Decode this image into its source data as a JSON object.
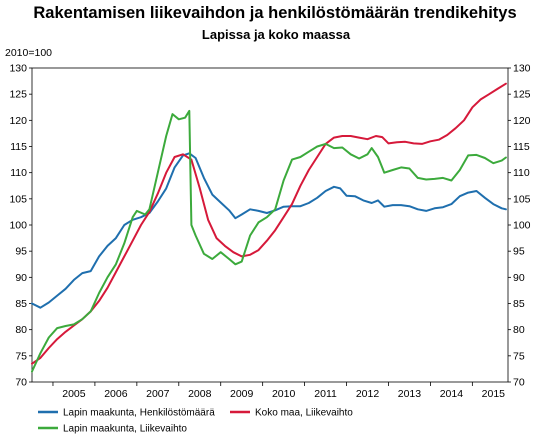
{
  "chart_data": {
    "type": "line",
    "title": "Rakentamisen liikevaihdon ja henkilöstömäärän trendikehitys",
    "subtitle": "Lapissa ja koko maassa",
    "y_unit_label": "2010=100",
    "ylim": [
      70,
      130
    ],
    "yticks": [
      "70",
      "75",
      "80",
      "85",
      "90",
      "95",
      "100",
      "105",
      "110",
      "115",
      "120",
      "125",
      "130"
    ],
    "xlim": [
      2004.5,
      2015.85
    ],
    "xticks": [
      "2005",
      "2006",
      "2007",
      "2008",
      "2009",
      "2010",
      "2011",
      "2012",
      "2013",
      "2014",
      "2015"
    ],
    "grid": false,
    "legend_position": "bottom",
    "series": [
      {
        "name": "Lapin maakunta, Henkilöstömäärä",
        "color": "#1f6fae",
        "points": [
          [
            2004.5,
            85.0
          ],
          [
            2004.7,
            84.2
          ],
          [
            2004.9,
            85.2
          ],
          [
            2005.1,
            86.5
          ],
          [
            2005.3,
            87.8
          ],
          [
            2005.5,
            89.5
          ],
          [
            2005.7,
            90.8
          ],
          [
            2005.9,
            91.2
          ],
          [
            2006.1,
            94.0
          ],
          [
            2006.3,
            96.0
          ],
          [
            2006.5,
            97.5
          ],
          [
            2006.7,
            100.0
          ],
          [
            2006.9,
            101.0
          ],
          [
            2007.1,
            101.5
          ],
          [
            2007.3,
            102.3
          ],
          [
            2007.5,
            104.5
          ],
          [
            2007.7,
            107.0
          ],
          [
            2007.9,
            111.0
          ],
          [
            2008.1,
            113.3
          ],
          [
            2008.25,
            113.7
          ],
          [
            2008.4,
            112.8
          ],
          [
            2008.6,
            109.0
          ],
          [
            2008.8,
            105.8
          ],
          [
            2009.0,
            104.3
          ],
          [
            2009.2,
            102.8
          ],
          [
            2009.35,
            101.3
          ],
          [
            2009.5,
            102.0
          ],
          [
            2009.7,
            103.0
          ],
          [
            2009.9,
            102.7
          ],
          [
            2010.1,
            102.3
          ],
          [
            2010.3,
            102.8
          ],
          [
            2010.5,
            103.5
          ],
          [
            2010.7,
            103.6
          ],
          [
            2010.9,
            103.6
          ],
          [
            2011.1,
            104.2
          ],
          [
            2011.3,
            105.2
          ],
          [
            2011.5,
            106.5
          ],
          [
            2011.7,
            107.3
          ],
          [
            2011.85,
            107.0
          ],
          [
            2012.0,
            105.6
          ],
          [
            2012.2,
            105.5
          ],
          [
            2012.4,
            104.7
          ],
          [
            2012.6,
            104.2
          ],
          [
            2012.75,
            104.7
          ],
          [
            2012.9,
            103.5
          ],
          [
            2013.1,
            103.8
          ],
          [
            2013.3,
            103.8
          ],
          [
            2013.5,
            103.6
          ],
          [
            2013.7,
            103.0
          ],
          [
            2013.9,
            102.7
          ],
          [
            2014.1,
            103.2
          ],
          [
            2014.3,
            103.4
          ],
          [
            2014.5,
            104.0
          ],
          [
            2014.7,
            105.5
          ],
          [
            2014.9,
            106.2
          ],
          [
            2015.1,
            106.5
          ],
          [
            2015.3,
            105.2
          ],
          [
            2015.5,
            104.0
          ],
          [
            2015.7,
            103.2
          ],
          [
            2015.8,
            103.0
          ]
        ]
      },
      {
        "name": "Koko maa, Liikevaihto",
        "color": "#d6193a",
        "points": [
          [
            2004.5,
            73.5
          ],
          [
            2004.7,
            74.6
          ],
          [
            2004.9,
            76.5
          ],
          [
            2005.1,
            78.2
          ],
          [
            2005.3,
            79.6
          ],
          [
            2005.5,
            80.8
          ],
          [
            2005.7,
            82.0
          ],
          [
            2005.9,
            83.5
          ],
          [
            2006.1,
            85.5
          ],
          [
            2006.3,
            88.0
          ],
          [
            2006.5,
            91.0
          ],
          [
            2006.7,
            94.0
          ],
          [
            2006.9,
            97.0
          ],
          [
            2007.1,
            100.0
          ],
          [
            2007.3,
            102.5
          ],
          [
            2007.5,
            106.0
          ],
          [
            2007.7,
            110.0
          ],
          [
            2007.9,
            113.0
          ],
          [
            2008.1,
            113.5
          ],
          [
            2008.3,
            112.5
          ],
          [
            2008.5,
            107.0
          ],
          [
            2008.7,
            101.0
          ],
          [
            2008.9,
            97.5
          ],
          [
            2009.1,
            96.0
          ],
          [
            2009.3,
            94.8
          ],
          [
            2009.5,
            94.0
          ],
          [
            2009.7,
            94.3
          ],
          [
            2009.9,
            95.2
          ],
          [
            2010.1,
            97.0
          ],
          [
            2010.3,
            99.0
          ],
          [
            2010.5,
            101.5
          ],
          [
            2010.7,
            104.0
          ],
          [
            2010.9,
            107.5
          ],
          [
            2011.1,
            110.5
          ],
          [
            2011.3,
            113.0
          ],
          [
            2011.5,
            115.5
          ],
          [
            2011.7,
            116.7
          ],
          [
            2011.9,
            117.0
          ],
          [
            2012.1,
            117.0
          ],
          [
            2012.3,
            116.7
          ],
          [
            2012.5,
            116.4
          ],
          [
            2012.7,
            117.0
          ],
          [
            2012.85,
            116.8
          ],
          [
            2013.0,
            115.6
          ],
          [
            2013.2,
            115.8
          ],
          [
            2013.4,
            115.9
          ],
          [
            2013.6,
            115.6
          ],
          [
            2013.8,
            115.5
          ],
          [
            2014.0,
            116.0
          ],
          [
            2014.2,
            116.3
          ],
          [
            2014.4,
            117.2
          ],
          [
            2014.6,
            118.5
          ],
          [
            2014.8,
            120.0
          ],
          [
            2015.0,
            122.5
          ],
          [
            2015.2,
            124.0
          ],
          [
            2015.4,
            125.0
          ],
          [
            2015.6,
            126.0
          ],
          [
            2015.8,
            127.0
          ]
        ]
      },
      {
        "name": "Lapin maakunta, Liikevaihto",
        "color": "#3caa3c",
        "points": [
          [
            2004.5,
            72.0
          ],
          [
            2004.7,
            75.5
          ],
          [
            2004.9,
            78.5
          ],
          [
            2005.1,
            80.3
          ],
          [
            2005.3,
            80.7
          ],
          [
            2005.5,
            81.0
          ],
          [
            2005.7,
            82.0
          ],
          [
            2005.9,
            83.5
          ],
          [
            2006.1,
            87.0
          ],
          [
            2006.3,
            90.0
          ],
          [
            2006.5,
            92.5
          ],
          [
            2006.7,
            96.5
          ],
          [
            2006.9,
            101.5
          ],
          [
            2007.0,
            102.7
          ],
          [
            2007.2,
            102.0
          ],
          [
            2007.3,
            103.0
          ],
          [
            2007.5,
            110.0
          ],
          [
            2007.7,
            117.0
          ],
          [
            2007.85,
            121.2
          ],
          [
            2008.0,
            120.2
          ],
          [
            2008.15,
            120.5
          ],
          [
            2008.25,
            121.8
          ],
          [
            2008.3,
            100.0
          ],
          [
            2008.4,
            98.0
          ],
          [
            2008.6,
            94.5
          ],
          [
            2008.8,
            93.5
          ],
          [
            2009.0,
            94.8
          ],
          [
            2009.2,
            93.5
          ],
          [
            2009.35,
            92.5
          ],
          [
            2009.5,
            93.0
          ],
          [
            2009.7,
            98.0
          ],
          [
            2009.9,
            100.5
          ],
          [
            2010.1,
            101.5
          ],
          [
            2010.3,
            103.0
          ],
          [
            2010.5,
            108.5
          ],
          [
            2010.7,
            112.5
          ],
          [
            2010.9,
            113.0
          ],
          [
            2011.1,
            114.0
          ],
          [
            2011.3,
            115.0
          ],
          [
            2011.5,
            115.5
          ],
          [
            2011.7,
            114.7
          ],
          [
            2011.9,
            114.8
          ],
          [
            2012.1,
            113.5
          ],
          [
            2012.3,
            112.7
          ],
          [
            2012.5,
            113.5
          ],
          [
            2012.6,
            114.7
          ],
          [
            2012.75,
            113.0
          ],
          [
            2012.9,
            110.0
          ],
          [
            2013.1,
            110.5
          ],
          [
            2013.3,
            111.0
          ],
          [
            2013.5,
            110.8
          ],
          [
            2013.7,
            109.0
          ],
          [
            2013.9,
            108.7
          ],
          [
            2014.1,
            108.8
          ],
          [
            2014.3,
            109.0
          ],
          [
            2014.5,
            108.5
          ],
          [
            2014.7,
            110.5
          ],
          [
            2014.9,
            113.3
          ],
          [
            2015.1,
            113.4
          ],
          [
            2015.3,
            112.8
          ],
          [
            2015.5,
            111.8
          ],
          [
            2015.7,
            112.3
          ],
          [
            2015.8,
            112.9
          ]
        ]
      }
    ]
  }
}
